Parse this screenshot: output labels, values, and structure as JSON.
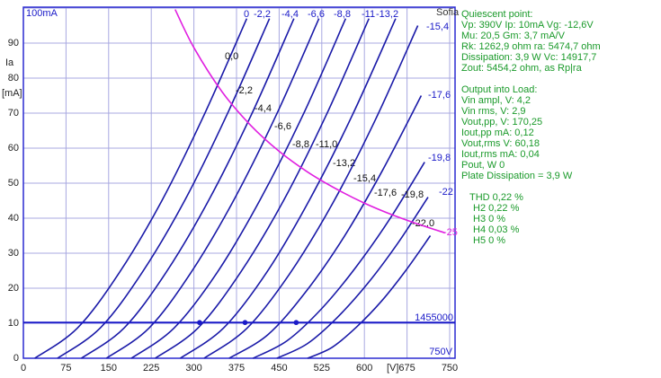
{
  "chart_data": {
    "type": "line",
    "y_label": "Ia",
    "y_unit": "[mA]",
    "x_label": "[V]",
    "xlim": [
      0,
      750
    ],
    "ylim": [
      0,
      100
    ],
    "xticks": [
      0,
      75,
      150,
      225,
      300,
      375,
      450,
      525,
      600,
      675,
      750
    ],
    "yticks": [
      0,
      10,
      20,
      30,
      40,
      50,
      60,
      70,
      80,
      90,
      {
        "value": 100,
        "label": "100mA"
      }
    ],
    "grid": true,
    "series": [
      {
        "name": "0,0",
        "color": "#1a1aa8",
        "x": [
          20,
          95,
          169,
          244,
          318,
          393
        ],
        "values": [
          0,
          8.6,
          24.5,
          45.1,
          69.5,
          97
        ]
      },
      {
        "name": "-2,2",
        "color": "#1a1aa8",
        "x": [
          60,
          135,
          209,
          284,
          358,
          433
        ],
        "values": [
          0,
          8.6,
          24.5,
          45.1,
          69.5,
          97
        ]
      },
      {
        "name": "-4,4",
        "color": "#1a1aa8",
        "x": [
          102,
          177,
          251,
          326,
          401,
          476
        ],
        "values": [
          0,
          8.6,
          24.5,
          45.1,
          69.5,
          97
        ]
      },
      {
        "name": "-6,6",
        "color": "#1a1aa8",
        "x": [
          146,
          221,
          295,
          370,
          445,
          520
        ],
        "values": [
          0,
          8.6,
          24.5,
          45.1,
          69.5,
          97
        ]
      },
      {
        "name": "-8,8",
        "color": "#1a1aa8",
        "x": [
          190,
          265,
          341,
          416,
          492,
          567
        ],
        "values": [
          0,
          8.6,
          24.5,
          45.1,
          69.5,
          97
        ]
      },
      {
        "name": "-11,0",
        "color": "#1a1aa8",
        "x": [
          232,
          307,
          382,
          458,
          533,
          608
        ],
        "values": [
          0,
          8.6,
          24.5,
          45.1,
          69.5,
          97
        ]
      },
      {
        "name": "-13,2",
        "color": "#1a1aa8",
        "x": [
          276,
          352,
          428,
          503,
          579,
          655
        ],
        "values": [
          0,
          8.6,
          24.5,
          45.1,
          69.5,
          97
        ]
      },
      {
        "name": "-15,4",
        "color": "#1a1aa8",
        "x": [
          318,
          393,
          468,
          544,
          619,
          694
        ],
        "values": [
          0,
          8.5,
          24.0,
          44.2,
          68.0,
          95
        ]
      },
      {
        "name": "-17,6",
        "color": "#1a1aa8",
        "x": [
          362,
          430,
          497,
          565,
          632,
          700
        ],
        "values": [
          0,
          6.7,
          19.0,
          34.9,
          53.7,
          75
        ]
      },
      {
        "name": "-19,8",
        "color": "#1a1aa8",
        "x": [
          404,
          464,
          525,
          585,
          646,
          706
        ],
        "values": [
          0,
          5.0,
          14.2,
          26.0,
          40.1,
          56
        ]
      },
      {
        "name": "-22,0",
        "color": "#1a1aa8",
        "x": [
          446,
          499,
          552,
          606,
          659,
          712
        ],
        "values": [
          0,
          4.1,
          11.6,
          21.4,
          32.9,
          46
        ]
      },
      {
        "name": "-25",
        "color": "#1a1aa8",
        "x": [
          500,
          543,
          586,
          630,
          673,
          716
        ],
        "values": [
          0,
          3.1,
          8.9,
          16.3,
          25.1,
          35
        ]
      }
    ],
    "dissipation_curve": {
      "color": "#e020e0",
      "x": [
        267,
        300,
        350,
        400,
        450,
        500,
        550,
        600,
        650,
        700,
        742
      ],
      "values": [
        99.6,
        88.7,
        76.0,
        66.5,
        59.1,
        53.2,
        48.4,
        44.3,
        40.9,
        38.0,
        35.8
      ]
    },
    "load_line": {
      "label": "1455000",
      "color": "#1a1ac8",
      "x": [
        0,
        750
      ],
      "values": [
        10.2,
        10.2
      ]
    },
    "operating_points": {
      "color": "#1a1ac8",
      "x": [
        310,
        390,
        480
      ],
      "values": [
        10.2,
        10.2,
        10.2
      ]
    },
    "annotations": [
      "0",
      "-2,2",
      "-4,4",
      "-6,6",
      "-8,8",
      "-11",
      "-13,2",
      "Sofia",
      "-15,4",
      "-17,6",
      "-19,8",
      "-22",
      "-25",
      "750V"
    ]
  },
  "info_panel": {
    "lines": [
      "Quiescent point:",
      "Vp: 390V  Ip: 10mA  Vg: -12,6V",
      "Mu: 20,5 Gm: 3,7 mA/V",
      "Rk: 1262,9 ohm ra: 5474,7 ohm",
      "Dissipation: 3,9 W Vc: 14917,7",
      "Zout: 5454,2 ohm, as Rp|ra",
      "Output into Load:",
      "Vin ampl, V: 4,2",
      "Vin rms, V: 2,9",
      "Vout,pp, V: 170,25",
      "Iout,pp mA: 0,12",
      "Vout,rms V: 60,18",
      "Iout,rms mA: 0,04",
      "Pout, W 0",
      "Plate Dissipation = 3,9 W",
      "THD 0,22 %",
      "H2 0,22 %",
      "H3 0 %",
      "H4 0,03 %",
      "H5 0 %"
    ]
  }
}
